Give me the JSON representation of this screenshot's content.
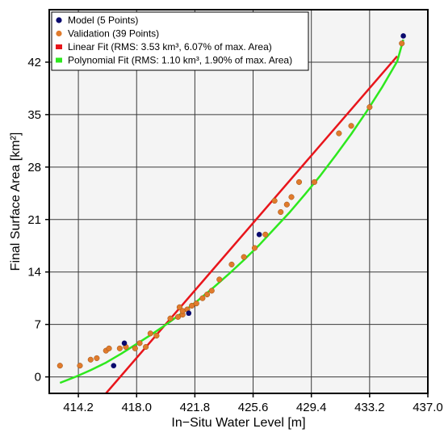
{
  "chart_data": {
    "type": "scatter",
    "xlabel": "In−Situ Water Level [m]",
    "ylabel": "Final Surface Area [km²]",
    "xlim": [
      412.3,
      437.0
    ],
    "ylim": [
      -2.2,
      49
    ],
    "x_ticks": [
      "414.2",
      "418.0",
      "421.8",
      "425.6",
      "429.4",
      "433.2",
      "437.0"
    ],
    "y_ticks": [
      "0",
      "7",
      "14",
      "21",
      "28",
      "35",
      "42"
    ],
    "grid": true,
    "legend_position": "top-left",
    "colors": {
      "model": "#0a0a6e",
      "validation": "#e07b2c",
      "linear": "#e8151b",
      "polynomial": "#2ee81e",
      "grid": "#3a3a3a",
      "plot_bg": "#f4f4f4"
    },
    "series": [
      {
        "name": "Model (5 Points)",
        "kind": "points",
        "x": [
          416.5,
          417.2,
          421.4,
          426.0,
          435.4
        ],
        "y": [
          1.5,
          4.5,
          8.5,
          19.0,
          45.5
        ]
      },
      {
        "name": "Validation (39 Points)",
        "kind": "points",
        "x": [
          413.0,
          414.3,
          415.0,
          415.4,
          416.0,
          416.2,
          416.9,
          417.3,
          417.9,
          418.2,
          418.6,
          418.9,
          419.3,
          420.2,
          420.7,
          421.0,
          421.3,
          421.6,
          421.9,
          422.3,
          422.6,
          422.9,
          423.4,
          424.2,
          425.0,
          425.7,
          426.4,
          427.0,
          427.4,
          427.8,
          428.1,
          428.6,
          429.6,
          431.2,
          432.0,
          433.2,
          435.3,
          420.8,
          421.0
        ],
        "y": [
          1.5,
          1.5,
          2.3,
          2.5,
          3.5,
          3.8,
          3.8,
          4.0,
          3.8,
          4.5,
          4.0,
          5.8,
          5.5,
          7.8,
          8.0,
          8.3,
          9.0,
          9.5,
          9.8,
          10.5,
          11.0,
          11.5,
          13.0,
          15.0,
          16.0,
          17.2,
          19.0,
          23.5,
          22.0,
          23.0,
          24.0,
          26.0,
          26.0,
          32.5,
          33.5,
          36.0,
          44.5,
          9.3,
          8.8
        ]
      },
      {
        "name": "Linear Fit (RMS: 3.53 km³, 6.07% of max. Area)",
        "kind": "line",
        "x": [
          416.0,
          435.0
        ],
        "y": [
          -2.2,
          42.8
        ]
      },
      {
        "name": "Polynomial Fit (RMS: 1.10 km³, 1.90% of max. Area)",
        "kind": "curve",
        "x": [
          413.0,
          414.0,
          415.0,
          416.0,
          417.0,
          418.0,
          419.0,
          420.0,
          421.0,
          422.0,
          423.0,
          424.0,
          425.0,
          426.0,
          427.0,
          428.0,
          429.0,
          430.0,
          431.0,
          432.0,
          433.0,
          434.0,
          435.0,
          435.4
        ],
        "y": [
          -0.8,
          0.0,
          0.9,
          1.9,
          3.1,
          4.4,
          5.7,
          7.1,
          8.6,
          10.2,
          11.9,
          13.7,
          15.6,
          17.6,
          19.8,
          22.0,
          24.4,
          26.9,
          29.6,
          32.4,
          35.4,
          38.6,
          42.1,
          45.0
        ]
      }
    ]
  }
}
